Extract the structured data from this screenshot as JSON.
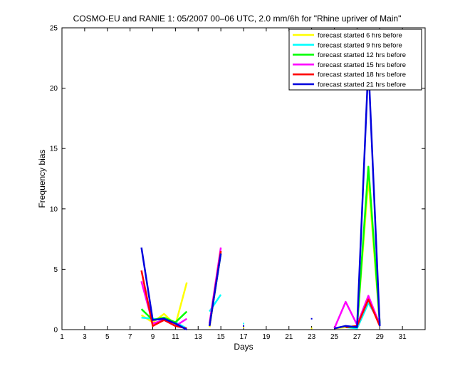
{
  "chart_data": {
    "type": "line",
    "title": "COSMO-EU and RANIE 1: 05/2007 00–06 UTC, 2.0 mm/6h for \"Rhine upriver of Main\"",
    "xlabel": "Days",
    "ylabel": "Frequency bias",
    "xlim": [
      1,
      33
    ],
    "ylim": [
      0,
      25
    ],
    "x_ticks": [
      1,
      3,
      5,
      7,
      9,
      11,
      13,
      15,
      17,
      19,
      21,
      23,
      25,
      27,
      29,
      31
    ],
    "y_ticks": [
      0,
      5,
      10,
      15,
      20,
      25
    ],
    "grid": false,
    "legend_position": "top-right",
    "series": [
      {
        "name": "forecast started 6 hrs before",
        "color": "#ffff00",
        "points": [
          [
            8,
            1.2
          ],
          [
            9,
            0.6
          ],
          [
            10,
            1.3
          ],
          [
            11,
            0.4
          ],
          [
            12,
            3.9
          ],
          [
            null,
            null
          ],
          [
            14,
            0.2
          ],
          [
            15,
            6.4
          ],
          [
            null,
            null
          ],
          [
            17,
            0.2
          ],
          [
            null,
            null
          ],
          [
            23,
            0.1
          ],
          [
            null,
            null
          ],
          [
            25,
            0.1
          ],
          [
            26,
            0.2
          ],
          [
            27,
            0.3
          ],
          [
            28,
            12.5
          ],
          [
            29,
            0.5
          ]
        ]
      },
      {
        "name": "forecast started 9 hrs before",
        "color": "#00ffff",
        "points": [
          [
            8,
            1.0
          ],
          [
            9,
            0.9
          ],
          [
            10,
            0.8
          ],
          [
            11,
            0.6
          ],
          [
            12,
            0.1
          ],
          [
            null,
            null
          ],
          [
            14,
            1.5
          ],
          [
            15,
            2.9
          ],
          [
            null,
            null
          ],
          [
            17,
            0.5
          ],
          [
            null,
            null
          ],
          [
            26,
            0.2
          ],
          [
            27,
            0.1
          ],
          [
            28,
            2.2
          ],
          [
            29,
            0.6
          ]
        ]
      },
      {
        "name": "forecast started 12 hrs before",
        "color": "#00ff00",
        "points": [
          [
            8,
            1.7
          ],
          [
            9,
            0.8
          ],
          [
            10,
            1.0
          ],
          [
            11,
            0.6
          ],
          [
            12,
            1.5
          ],
          [
            null,
            null
          ],
          [
            14,
            0.3
          ],
          [
            15,
            6.3
          ],
          [
            null,
            null
          ],
          [
            26,
            0.2
          ],
          [
            27,
            0.2
          ],
          [
            28,
            13.5
          ],
          [
            29,
            0.5
          ]
        ]
      },
      {
        "name": "forecast started 15 hrs before",
        "color": "#ff00ff",
        "points": [
          [
            8,
            4.0
          ],
          [
            9,
            0.5
          ],
          [
            10,
            0.8
          ],
          [
            11,
            0.3
          ],
          [
            12,
            0.9
          ],
          [
            null,
            null
          ],
          [
            14,
            0.5
          ],
          [
            15,
            6.8
          ],
          [
            null,
            null
          ],
          [
            25,
            0.1
          ],
          [
            26,
            2.3
          ],
          [
            27,
            0.4
          ],
          [
            28,
            2.8
          ],
          [
            29,
            0.4
          ]
        ]
      },
      {
        "name": "forecast started 18 hrs before",
        "color": "#ff0000",
        "points": [
          [
            8,
            4.9
          ],
          [
            9,
            0.3
          ],
          [
            10,
            0.8
          ],
          [
            11,
            0.3
          ],
          [
            12,
            0.1
          ],
          [
            null,
            null
          ],
          [
            14,
            0.3
          ],
          [
            15,
            6.5
          ],
          [
            null,
            null
          ],
          [
            26,
            0.2
          ],
          [
            27,
            0.3
          ],
          [
            28,
            2.5
          ],
          [
            29,
            0.3
          ]
        ]
      },
      {
        "name": "forecast started 21 hrs before",
        "color": "#0000dd",
        "points": [
          [
            8,
            6.8
          ],
          [
            9,
            0.8
          ],
          [
            10,
            0.9
          ],
          [
            11,
            0.5
          ],
          [
            12,
            0.0
          ],
          [
            null,
            null
          ],
          [
            14,
            0.3
          ],
          [
            15,
            6.3
          ],
          [
            null,
            null
          ],
          [
            17,
            0.3
          ],
          [
            null,
            null
          ],
          [
            23,
            0.9
          ],
          [
            null,
            null
          ],
          [
            25,
            0.1
          ],
          [
            26,
            0.3
          ],
          [
            27,
            0.2
          ],
          [
            28,
            22.0
          ],
          [
            29,
            0.3
          ]
        ]
      }
    ]
  }
}
